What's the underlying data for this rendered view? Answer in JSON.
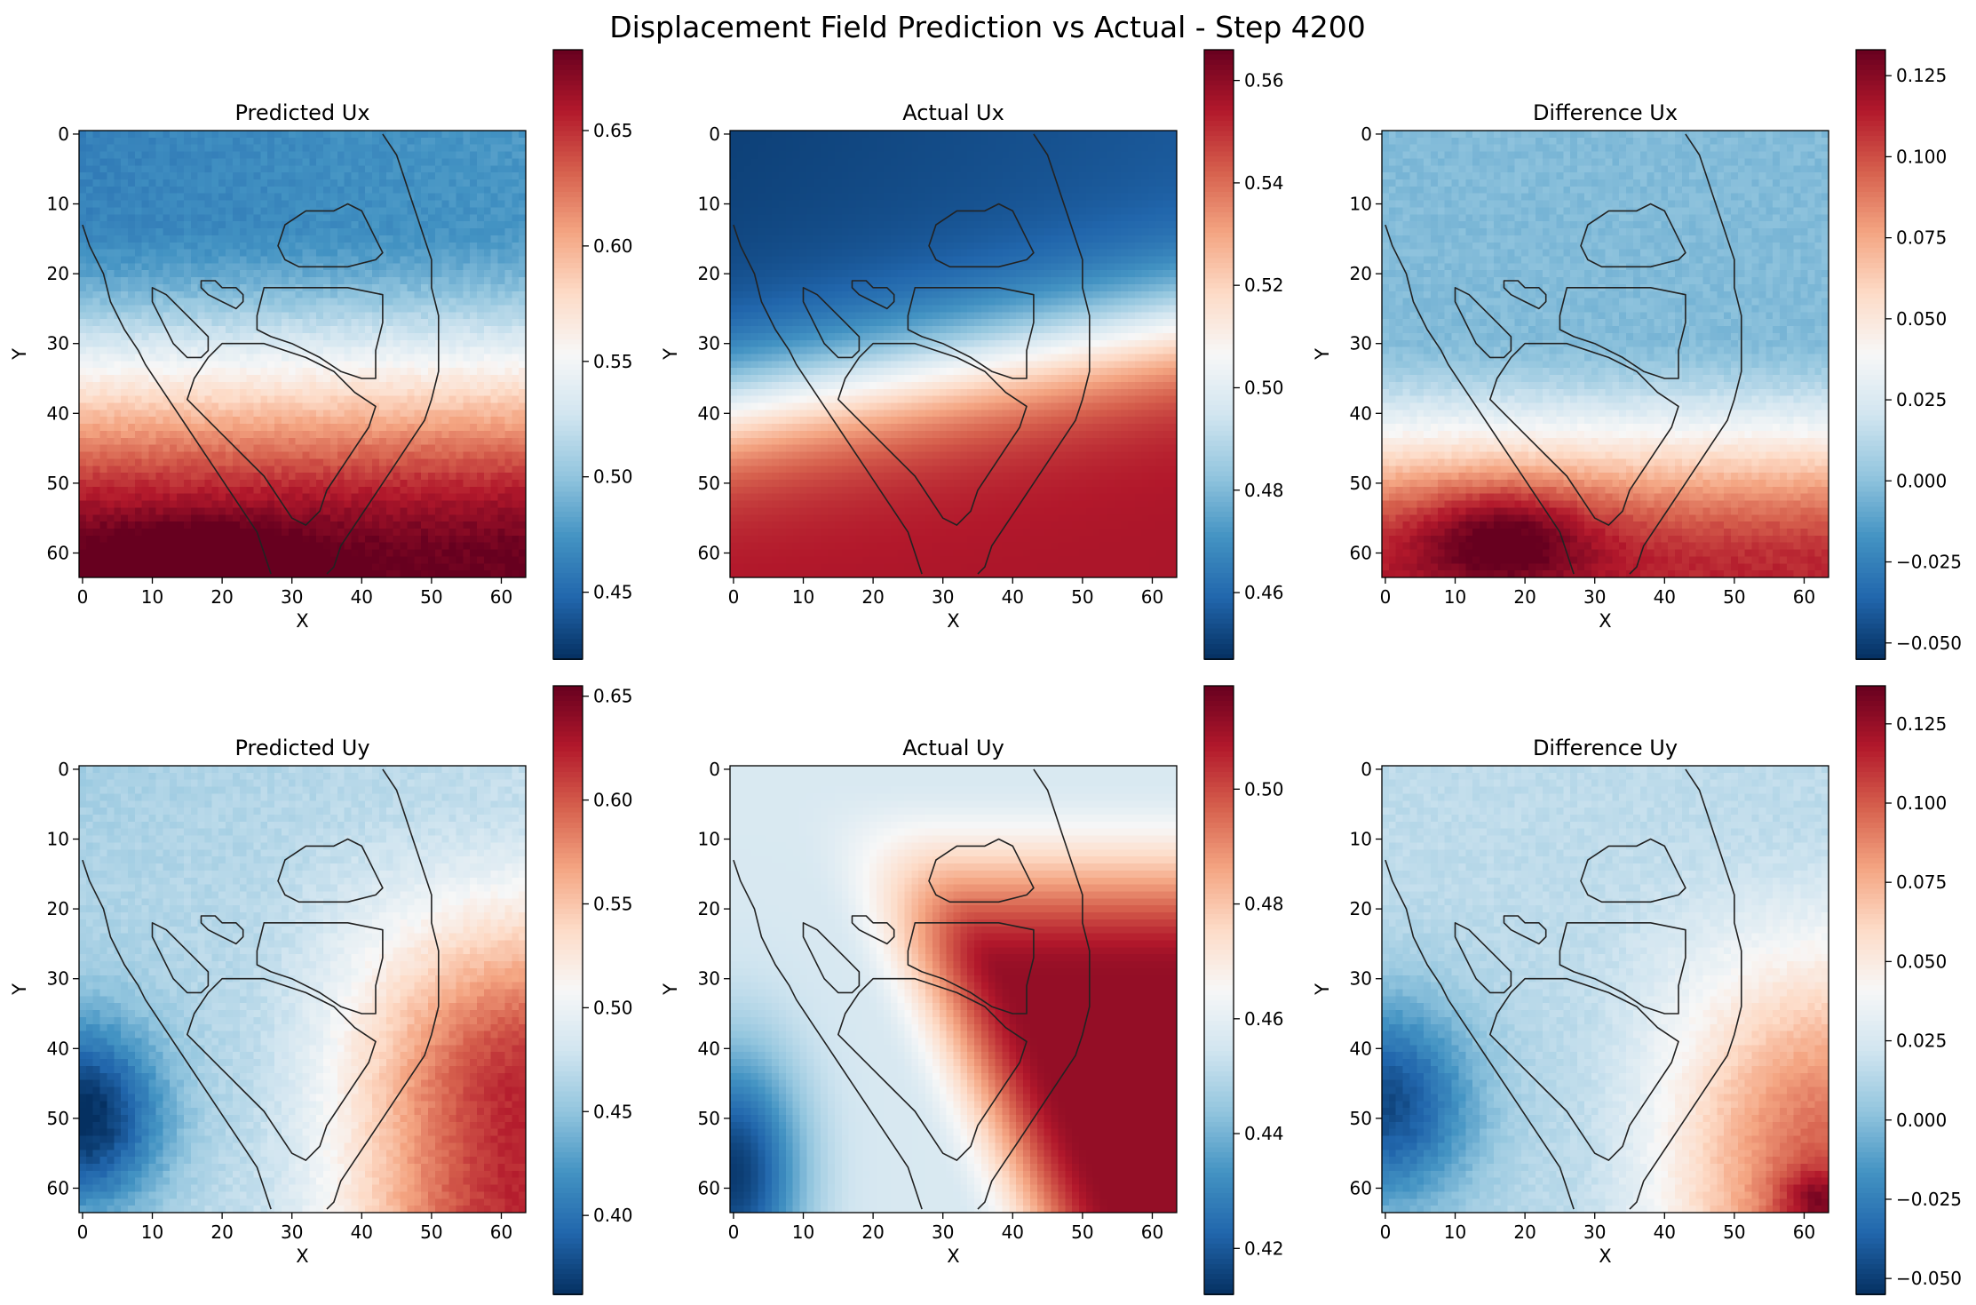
{
  "chart_data": {
    "type": "heatmap",
    "title": "Displacement Field Prediction vs Actual - Step 4200",
    "grid": false,
    "colormap": "RdBu_r",
    "colormap_stops": [
      "#053061",
      "#2166ac",
      "#4393c3",
      "#92c5de",
      "#d1e5f0",
      "#f7f7f7",
      "#fddbc7",
      "#f4a582",
      "#d6604d",
      "#b2182b",
      "#67001f"
    ],
    "outline_color": "#222222",
    "grid_size": 64,
    "x_ticks": [
      "0",
      "10",
      "20",
      "30",
      "40",
      "50",
      "60"
    ],
    "y_ticks": [
      "0",
      "10",
      "20",
      "30",
      "40",
      "50",
      "60"
    ],
    "xlim": [
      -0.5,
      63.5
    ],
    "ylim": [
      63.5,
      -0.5
    ],
    "panels": [
      {
        "title": "Predicted Ux",
        "xlabel": "X",
        "ylabel": "Y",
        "field": "pred_ux",
        "vmin": 0.421,
        "vmax": 0.685,
        "colorbar_ticks": [
          "0.45",
          "0.50",
          "0.55",
          "0.60",
          "0.65"
        ],
        "colorbar_values": [
          0.45,
          0.5,
          0.55,
          0.6,
          0.65
        ]
      },
      {
        "title": "Actual Ux",
        "xlabel": "X",
        "ylabel": "Y",
        "field": "actual_ux",
        "vmin": 0.447,
        "vmax": 0.566,
        "colorbar_ticks": [
          "0.46",
          "0.48",
          "0.50",
          "0.52",
          "0.54",
          "0.56"
        ],
        "colorbar_values": [
          0.46,
          0.48,
          0.5,
          0.52,
          0.54,
          0.56
        ]
      },
      {
        "title": "Difference Ux",
        "xlabel": "X",
        "ylabel": "Y",
        "field": "diff_ux",
        "vmin": -0.055,
        "vmax": 0.133,
        "colorbar_ticks": [
          "−0.050",
          "−0.025",
          "0.000",
          "0.025",
          "0.050",
          "0.075",
          "0.100",
          "0.125"
        ],
        "colorbar_values": [
          -0.05,
          -0.025,
          0.0,
          0.025,
          0.05,
          0.075,
          0.1,
          0.125
        ]
      },
      {
        "title": "Predicted Uy",
        "xlabel": "X",
        "ylabel": "Y",
        "field": "pred_uy",
        "vmin": 0.362,
        "vmax": 0.655,
        "colorbar_ticks": [
          "0.40",
          "0.45",
          "0.50",
          "0.55",
          "0.60",
          "0.65"
        ],
        "colorbar_values": [
          0.4,
          0.45,
          0.5,
          0.55,
          0.6,
          0.65
        ]
      },
      {
        "title": "Actual Uy",
        "xlabel": "X",
        "ylabel": "Y",
        "field": "actual_uy",
        "vmin": 0.412,
        "vmax": 0.518,
        "colorbar_ticks": [
          "0.42",
          "0.44",
          "0.46",
          "0.48",
          "0.50"
        ],
        "colorbar_values": [
          0.42,
          0.44,
          0.46,
          0.48,
          0.5
        ]
      },
      {
        "title": "Difference Uy",
        "xlabel": "X",
        "ylabel": "Y",
        "field": "diff_uy",
        "vmin": -0.055,
        "vmax": 0.137,
        "colorbar_ticks": [
          "−0.050",
          "−0.025",
          "0.000",
          "0.025",
          "0.050",
          "0.075",
          "0.100",
          "0.125"
        ],
        "colorbar_values": [
          -0.05,
          -0.025,
          0.0,
          0.025,
          0.05,
          0.075,
          0.1,
          0.125
        ]
      }
    ],
    "contours": [
      {
        "name": "outer-boundary",
        "closed": false,
        "points": [
          [
            0,
            13
          ],
          [
            1,
            16
          ],
          [
            3,
            20
          ],
          [
            4,
            24
          ],
          [
            6,
            28
          ],
          [
            8,
            31
          ],
          [
            9,
            33
          ],
          [
            11,
            36
          ],
          [
            13,
            39
          ],
          [
            15,
            42
          ],
          [
            17,
            45
          ],
          [
            19,
            48
          ],
          [
            21,
            51
          ],
          [
            23,
            54
          ],
          [
            25,
            57
          ],
          [
            26,
            60
          ],
          [
            27,
            63
          ]
        ]
      },
      {
        "name": "right-boundary",
        "closed": false,
        "points": [
          [
            43,
            0
          ],
          [
            45,
            3
          ],
          [
            46,
            6
          ],
          [
            47,
            9
          ],
          [
            48,
            12
          ],
          [
            49,
            15
          ],
          [
            50,
            18
          ],
          [
            50,
            22
          ],
          [
            51,
            26
          ],
          [
            51,
            30
          ],
          [
            51,
            34
          ],
          [
            50,
            38
          ],
          [
            49,
            41
          ],
          [
            47,
            44
          ],
          [
            45,
            47
          ],
          [
            43,
            50
          ],
          [
            41,
            53
          ],
          [
            39,
            56
          ],
          [
            37,
            59
          ],
          [
            36,
            62
          ],
          [
            35,
            63
          ]
        ]
      },
      {
        "name": "top-blob",
        "closed": true,
        "points": [
          [
            29,
            13
          ],
          [
            32,
            11
          ],
          [
            36,
            11
          ],
          [
            38,
            10
          ],
          [
            40,
            11
          ],
          [
            41,
            13
          ],
          [
            42,
            15
          ],
          [
            43,
            17
          ],
          [
            42,
            18
          ],
          [
            38,
            19
          ],
          [
            34,
            19
          ],
          [
            31,
            19
          ],
          [
            29,
            18
          ],
          [
            28,
            16
          ]
        ]
      },
      {
        "name": "small-blob",
        "closed": true,
        "points": [
          [
            17,
            21
          ],
          [
            19,
            21
          ],
          [
            20,
            22
          ],
          [
            22,
            22
          ],
          [
            23,
            23
          ],
          [
            23,
            24
          ],
          [
            22,
            25
          ],
          [
            20,
            24
          ],
          [
            18,
            23
          ],
          [
            17,
            22
          ]
        ]
      },
      {
        "name": "left-lens",
        "closed": true,
        "points": [
          [
            10,
            22
          ],
          [
            12,
            23
          ],
          [
            14,
            25
          ],
          [
            16,
            27
          ],
          [
            18,
            29
          ],
          [
            18,
            31
          ],
          [
            17,
            32
          ],
          [
            15,
            32
          ],
          [
            13,
            30
          ],
          [
            12,
            28
          ],
          [
            11,
            26
          ],
          [
            10,
            24
          ]
        ]
      },
      {
        "name": "middle-shape",
        "closed": true,
        "points": [
          [
            26,
            22
          ],
          [
            38,
            22
          ],
          [
            43,
            23
          ],
          [
            43,
            27
          ],
          [
            42,
            31
          ],
          [
            42,
            35
          ],
          [
            40,
            35
          ],
          [
            37,
            34
          ],
          [
            34,
            32
          ],
          [
            30,
            30
          ],
          [
            27,
            29
          ],
          [
            25,
            28
          ],
          [
            25,
            26
          ]
        ]
      },
      {
        "name": "lower-shape",
        "closed": true,
        "points": [
          [
            20,
            30
          ],
          [
            26,
            30
          ],
          [
            32,
            32
          ],
          [
            36,
            34
          ],
          [
            39,
            37
          ],
          [
            42,
            39
          ],
          [
            41,
            42
          ],
          [
            39,
            45
          ],
          [
            37,
            48
          ],
          [
            35,
            51
          ],
          [
            34,
            54
          ],
          [
            32,
            56
          ],
          [
            30,
            55
          ],
          [
            28,
            52
          ],
          [
            26,
            49
          ],
          [
            23,
            46
          ],
          [
            20,
            43
          ],
          [
            17,
            40
          ],
          [
            15,
            38
          ],
          [
            16,
            35
          ],
          [
            18,
            32
          ]
        ]
      }
    ]
  }
}
